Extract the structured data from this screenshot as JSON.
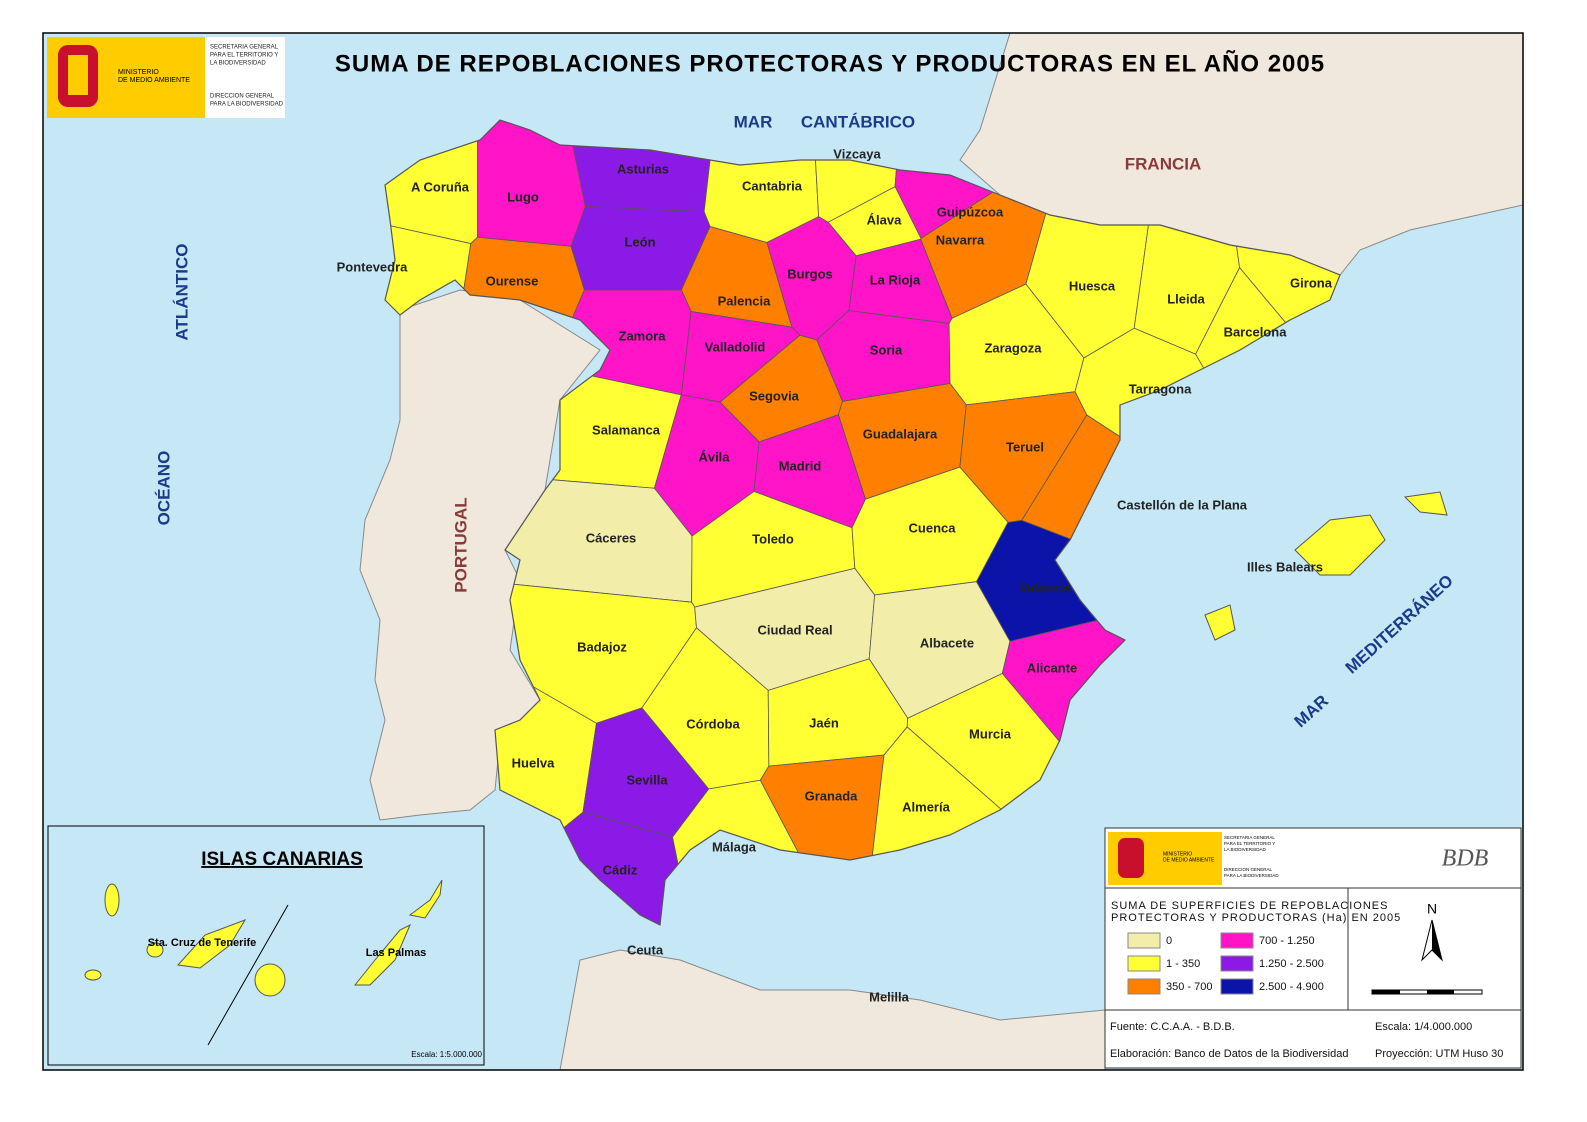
{
  "header": {
    "title": "SUMA DE REPOBLACIONES PROTECTORAS Y PRODUCTORAS EN EL AÑO 2005",
    "ministry": [
      "MINISTERIO",
      "DE MEDIO AMBIENTE"
    ],
    "secretaria": [
      "SECRETARIA GENERAL",
      "PARA EL TERRITORIO Y",
      "LA BIODIVERSIDAD"
    ],
    "direccion": [
      "DIRECCION GENERAL",
      "PARA LA BIODIVERSIDAD"
    ]
  },
  "map": {
    "seas": [
      "MAR",
      "CANTÁBRICO",
      "OCÉANO",
      "ATLÁNTICO",
      "MAR",
      "MEDITERRÁNEO"
    ],
    "countries": [
      "FRANCIA",
      "PORTUGAL"
    ],
    "provinces": [
      {
        "name": "A Coruña",
        "color": "#ffff33"
      },
      {
        "name": "Lugo",
        "color": "#ff14c8"
      },
      {
        "name": "Asturias",
        "color": "#8c1ae6"
      },
      {
        "name": "Cantabria",
        "color": "#ffff33"
      },
      {
        "name": "Vizcaya",
        "color": "#ffff33"
      },
      {
        "name": "Guipúzcoa",
        "color": "#ff14c8"
      },
      {
        "name": "Navarra",
        "color": "#ff8000"
      },
      {
        "name": "Álava",
        "color": "#ffff33"
      },
      {
        "name": "La Rioja",
        "color": "#ff14c8"
      },
      {
        "name": "Pontevedra",
        "color": "#ffff33"
      },
      {
        "name": "Ourense",
        "color": "#ff8000"
      },
      {
        "name": "León",
        "color": "#8c1ae6"
      },
      {
        "name": "Palencia",
        "color": "#ff8000"
      },
      {
        "name": "Burgos",
        "color": "#ff14c8"
      },
      {
        "name": "Zamora",
        "color": "#ff14c8"
      },
      {
        "name": "Valladolid",
        "color": "#ff14c8"
      },
      {
        "name": "Soria",
        "color": "#ff14c8"
      },
      {
        "name": "Huesca",
        "color": "#ffff33"
      },
      {
        "name": "Lleida",
        "color": "#ffff33"
      },
      {
        "name": "Girona",
        "color": "#ffff33"
      },
      {
        "name": "Barcelona",
        "color": "#ffff33"
      },
      {
        "name": "Zaragoza",
        "color": "#ffff33"
      },
      {
        "name": "Tarragona",
        "color": "#ffff33"
      },
      {
        "name": "Segovia",
        "color": "#ff8000"
      },
      {
        "name": "Salamanca",
        "color": "#ffff33"
      },
      {
        "name": "Guadalajara",
        "color": "#ff8000"
      },
      {
        "name": "Teruel",
        "color": "#ff8000"
      },
      {
        "name": "Ávila",
        "color": "#ff14c8"
      },
      {
        "name": "Madrid",
        "color": "#ff14c8"
      },
      {
        "name": "Castellón de la Plana",
        "color": "#ff8000"
      },
      {
        "name": "Cáceres",
        "color": "#f2eeaa"
      },
      {
        "name": "Toledo",
        "color": "#ffff33"
      },
      {
        "name": "Cuenca",
        "color": "#ffff33"
      },
      {
        "name": "Valencia",
        "color": "#0b13a8"
      },
      {
        "name": "Badajoz",
        "color": "#ffff33"
      },
      {
        "name": "Ciudad Real",
        "color": "#f2eeaa"
      },
      {
        "name": "Albacete",
        "color": "#f2eeaa"
      },
      {
        "name": "Alicante",
        "color": "#ff14c8"
      },
      {
        "name": "Córdoba",
        "color": "#ffff33"
      },
      {
        "name": "Jaén",
        "color": "#ffff33"
      },
      {
        "name": "Murcia",
        "color": "#ffff33"
      },
      {
        "name": "Huelva",
        "color": "#ffff33"
      },
      {
        "name": "Sevilla",
        "color": "#8c1ae6"
      },
      {
        "name": "Granada",
        "color": "#ff8000"
      },
      {
        "name": "Almería",
        "color": "#ffff33"
      },
      {
        "name": "Málaga",
        "color": "#ffff33"
      },
      {
        "name": "Cádiz",
        "color": "#8c1ae6"
      }
    ],
    "baleares": {
      "name": "Illes Balears",
      "color": "#ffff33"
    },
    "cities": [
      "Ceuta",
      "Melilla"
    ],
    "canarias": {
      "title": "ISLAS CANARIAS",
      "provinces": [
        {
          "name": "Sta. Cruz de Tenerife",
          "color": "#ffff33"
        },
        {
          "name": "Las Palmas",
          "color": "#ffff33"
        }
      ],
      "scale": "Escala: 1:5.000.000"
    }
  },
  "legend": {
    "title": [
      "SUMA DE SUPERFICIES DE REPOBLACIONES",
      "PROTECTORAS Y PRODUCTORAS (Ha) EN 2005"
    ],
    "items": [
      {
        "label": "0",
        "color": "#f2eeaa"
      },
      {
        "label": "1 - 350",
        "color": "#ffff33"
      },
      {
        "label": "350 - 700",
        "color": "#ff8000"
      },
      {
        "label": "700 - 1.250",
        "color": "#ff14c8"
      },
      {
        "label": "1.250 - 2.500",
        "color": "#8c1ae6"
      },
      {
        "label": "2.500 - 4.900",
        "color": "#0b13a8"
      }
    ],
    "logo": "BDB",
    "north": "N",
    "source": "Fuente: C.C.A.A. - B.D.B.",
    "scale": "Escala: 1/4.000.000",
    "credits": "Elaboración: Banco de Datos de la Biodiversidad",
    "projection": "Proyección: UTM  Huso 30"
  }
}
